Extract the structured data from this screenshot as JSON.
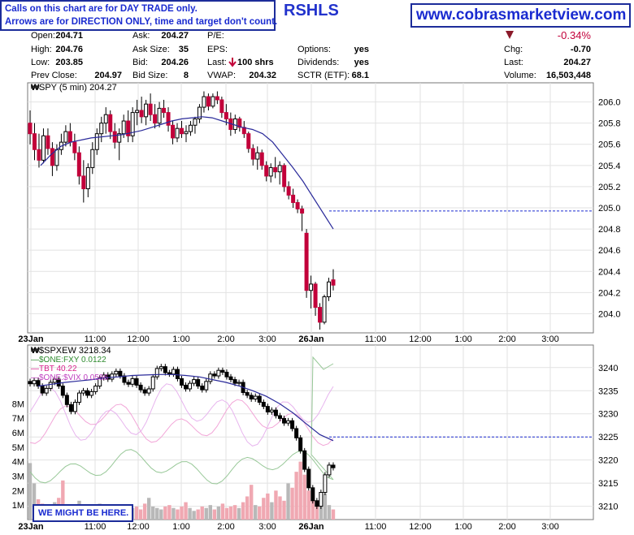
{
  "header": {
    "notice_line1": "Calls on this chart are for DAY TRADE only.",
    "notice_line2": "Arrows are for DIRECTION ONLY, time and target don't count.",
    "title": "RSHLS",
    "website": "www.cobrasmarketview.com"
  },
  "quote": {
    "open_label": "Open:",
    "open": "204.71",
    "high_label": "High:",
    "high": "204.76",
    "low_label": "Low:",
    "low": "203.85",
    "prev_close_label": "Prev Close:",
    "prev_close": "204.97",
    "ask_label": "Ask:",
    "ask": "204.27",
    "ask_size_label": "Ask Size:",
    "ask_size": "35",
    "bid_label": "Bid:",
    "bid": "204.26",
    "bid_size_label": "Bid Size:",
    "bid_size": "8",
    "pe_label": "P/E:",
    "eps_label": "EPS:",
    "last_label": "Last:",
    "last_trade": "100 shrs",
    "vwap_label": "VWAP:",
    "vwap": "204.32",
    "options_label": "Options:",
    "options": "yes",
    "dividends_label": "Dividends:",
    "dividends": "yes",
    "sctr_label": "SCTR (ETF):",
    "sctr": "68.1",
    "pct_change": "-0.34%",
    "chg_label": "Chg:",
    "chg": "-0.70",
    "last2_label": "Last:",
    "last": "204.27",
    "volume_label": "Volume:",
    "volume": "16,503,448",
    "colors": {
      "down": "#c2003a",
      "up": "#ffffff",
      "accent": "#1a2bd0"
    }
  },
  "chart_data": [
    {
      "type": "candlestick",
      "title": "SPY (5 min) 204.27",
      "x_ticks": [
        "23Jan",
        "11:00",
        "12:00",
        "1:00",
        "2:00",
        "3:00",
        "26Jan",
        "11:00",
        "12:00",
        "1:00",
        "2:00",
        "3:00"
      ],
      "y_ticks": [
        "206.0",
        "205.8",
        "205.6",
        "205.4",
        "205.2",
        "205.0",
        "204.8",
        "204.6",
        "204.4",
        "204.2",
        "204.0"
      ],
      "ylim": [
        203.85,
        206.15
      ],
      "reference_line": 204.97,
      "candles": [
        {
          "o": 205.8,
          "h": 205.92,
          "l": 205.6,
          "c": 205.7
        },
        {
          "o": 205.7,
          "h": 205.8,
          "l": 205.45,
          "c": 205.55
        },
        {
          "o": 205.55,
          "h": 205.7,
          "l": 205.38,
          "c": 205.45
        },
        {
          "o": 205.45,
          "h": 205.75,
          "l": 205.42,
          "c": 205.68
        },
        {
          "o": 205.68,
          "h": 205.75,
          "l": 205.5,
          "c": 205.56
        },
        {
          "o": 205.56,
          "h": 205.62,
          "l": 205.3,
          "c": 205.4
        },
        {
          "o": 205.4,
          "h": 205.6,
          "l": 205.35,
          "c": 205.55
        },
        {
          "o": 205.55,
          "h": 205.7,
          "l": 205.5,
          "c": 205.62
        },
        {
          "o": 205.62,
          "h": 205.78,
          "l": 205.58,
          "c": 205.72
        },
        {
          "o": 205.72,
          "h": 205.8,
          "l": 205.58,
          "c": 205.62
        },
        {
          "o": 205.62,
          "h": 205.7,
          "l": 205.45,
          "c": 205.52
        },
        {
          "o": 205.52,
          "h": 205.58,
          "l": 205.22,
          "c": 205.3
        },
        {
          "o": 205.3,
          "h": 205.45,
          "l": 205.05,
          "c": 205.18
        },
        {
          "o": 205.18,
          "h": 205.42,
          "l": 205.1,
          "c": 205.38
        },
        {
          "o": 205.38,
          "h": 205.62,
          "l": 205.32,
          "c": 205.55
        },
        {
          "o": 205.55,
          "h": 205.75,
          "l": 205.5,
          "c": 205.7
        },
        {
          "o": 205.7,
          "h": 205.86,
          "l": 205.62,
          "c": 205.8
        },
        {
          "o": 205.8,
          "h": 205.95,
          "l": 205.7,
          "c": 205.88
        },
        {
          "o": 205.88,
          "h": 205.92,
          "l": 205.65,
          "c": 205.72
        },
        {
          "o": 205.72,
          "h": 205.8,
          "l": 205.56,
          "c": 205.62
        },
        {
          "o": 205.62,
          "h": 205.75,
          "l": 205.45,
          "c": 205.7
        },
        {
          "o": 205.7,
          "h": 205.88,
          "l": 205.66,
          "c": 205.82
        },
        {
          "o": 205.82,
          "h": 205.92,
          "l": 205.62,
          "c": 205.68
        },
        {
          "o": 205.68,
          "h": 205.95,
          "l": 205.62,
          "c": 205.9
        },
        {
          "o": 205.9,
          "h": 206.02,
          "l": 205.78,
          "c": 205.92
        },
        {
          "o": 205.92,
          "h": 206.05,
          "l": 205.8,
          "c": 205.86
        },
        {
          "o": 205.86,
          "h": 206.02,
          "l": 205.78,
          "c": 205.98
        },
        {
          "o": 205.98,
          "h": 206.08,
          "l": 205.82,
          "c": 205.88
        },
        {
          "o": 205.88,
          "h": 205.98,
          "l": 205.75,
          "c": 205.8
        },
        {
          "o": 205.8,
          "h": 206.0,
          "l": 205.76,
          "c": 205.94
        },
        {
          "o": 205.94,
          "h": 206.02,
          "l": 205.85,
          "c": 205.9
        },
        {
          "o": 205.9,
          "h": 205.95,
          "l": 205.72,
          "c": 205.78
        },
        {
          "o": 205.78,
          "h": 205.82,
          "l": 205.6,
          "c": 205.66
        },
        {
          "o": 205.66,
          "h": 205.8,
          "l": 205.62,
          "c": 205.75
        },
        {
          "o": 205.75,
          "h": 205.82,
          "l": 205.66,
          "c": 205.7
        },
        {
          "o": 205.7,
          "h": 205.78,
          "l": 205.62,
          "c": 205.72
        },
        {
          "o": 205.72,
          "h": 205.82,
          "l": 205.68,
          "c": 205.78
        },
        {
          "o": 205.78,
          "h": 205.86,
          "l": 205.7,
          "c": 205.84
        },
        {
          "o": 205.84,
          "h": 205.98,
          "l": 205.8,
          "c": 205.95
        },
        {
          "o": 205.95,
          "h": 206.1,
          "l": 205.9,
          "c": 206.05
        },
        {
          "o": 206.05,
          "h": 206.08,
          "l": 205.92,
          "c": 205.96
        },
        {
          "o": 205.96,
          "h": 206.08,
          "l": 205.94,
          "c": 206.05
        },
        {
          "o": 206.05,
          "h": 206.1,
          "l": 205.98,
          "c": 206.02
        },
        {
          "o": 206.02,
          "h": 206.05,
          "l": 205.85,
          "c": 205.9
        },
        {
          "o": 205.9,
          "h": 205.98,
          "l": 205.78,
          "c": 205.84
        },
        {
          "o": 205.84,
          "h": 205.9,
          "l": 205.68,
          "c": 205.74
        },
        {
          "o": 205.74,
          "h": 205.88,
          "l": 205.7,
          "c": 205.84
        },
        {
          "o": 205.84,
          "h": 205.86,
          "l": 205.72,
          "c": 205.76
        },
        {
          "o": 205.76,
          "h": 205.82,
          "l": 205.66,
          "c": 205.7
        },
        {
          "o": 205.7,
          "h": 205.72,
          "l": 205.52,
          "c": 205.56
        },
        {
          "o": 205.56,
          "h": 205.6,
          "l": 205.4,
          "c": 205.46
        },
        {
          "o": 205.46,
          "h": 205.58,
          "l": 205.36,
          "c": 205.52
        },
        {
          "o": 205.52,
          "h": 205.55,
          "l": 205.36,
          "c": 205.4
        },
        {
          "o": 205.4,
          "h": 205.44,
          "l": 205.25,
          "c": 205.3
        },
        {
          "o": 205.3,
          "h": 205.42,
          "l": 205.24,
          "c": 205.38
        },
        {
          "o": 205.38,
          "h": 205.48,
          "l": 205.28,
          "c": 205.34
        },
        {
          "o": 205.34,
          "h": 205.44,
          "l": 205.22,
          "c": 205.4
        },
        {
          "o": 205.4,
          "h": 205.42,
          "l": 205.15,
          "c": 205.2
        },
        {
          "o": 205.2,
          "h": 205.25,
          "l": 205.08,
          "c": 205.12
        },
        {
          "o": 205.12,
          "h": 205.18,
          "l": 205.0,
          "c": 205.05
        },
        {
          "o": 205.05,
          "h": 205.08,
          "l": 204.95,
          "c": 204.99
        },
        {
          "o": 204.99,
          "h": 205.02,
          "l": 204.78,
          "c": 204.95
        },
        {
          "o": 204.76,
          "h": 204.8,
          "l": 204.15,
          "c": 204.22
        },
        {
          "o": 204.22,
          "h": 204.36,
          "l": 204.05,
          "c": 204.28
        },
        {
          "o": 204.28,
          "h": 204.3,
          "l": 203.98,
          "c": 204.06
        },
        {
          "o": 204.06,
          "h": 204.1,
          "l": 203.85,
          "c": 203.92
        },
        {
          "o": 203.92,
          "h": 204.18,
          "l": 203.9,
          "c": 204.16
        },
        {
          "o": 204.16,
          "h": 204.34,
          "l": 204.12,
          "c": 204.3
        },
        {
          "o": 204.32,
          "h": 204.42,
          "l": 204.22,
          "c": 204.27
        }
      ],
      "ma": [
        205.4,
        205.5,
        205.58,
        205.62,
        205.64,
        205.66,
        205.67,
        205.68,
        205.69,
        205.71,
        205.73,
        205.76,
        205.79,
        205.82,
        205.84,
        205.85,
        205.86,
        205.85,
        205.82,
        205.79,
        205.76,
        205.74,
        205.7,
        205.62,
        205.5,
        205.38,
        205.25,
        205.1,
        204.95,
        204.8
      ]
    },
    {
      "type": "candlestick",
      "title": "$SPXEW 3218.34",
      "legend": [
        {
          "name": "$ONE:FXY 0.0122",
          "color": "#2e8b2e"
        },
        {
          "name": "TBT 40.22",
          "color": "#d8208c"
        },
        {
          "name": "$ONE:$VIX 0.0586",
          "color": "#c040c0"
        }
      ],
      "x_ticks": [
        "23Jan",
        "11:00",
        "12:00",
        "1:00",
        "2:00",
        "3:00",
        "26Jan",
        "11:00",
        "12:00",
        "1:00",
        "2:00",
        "3:00"
      ],
      "y_ticks": [
        "3240",
        "3235",
        "3230",
        "3225",
        "3220",
        "3215",
        "3210"
      ],
      "volume_ticks": [
        "8M",
        "7M",
        "6M",
        "5M",
        "4M",
        "3M",
        "2M",
        "1M"
      ],
      "ylim": [
        3208,
        3244
      ],
      "reference_line": 3225,
      "closes": [
        3236.5,
        3237.2,
        3236.0,
        3234.5,
        3235.5,
        3236.8,
        3237.5,
        3236.0,
        3234.0,
        3232.0,
        3230.5,
        3232.5,
        3234.5,
        3235.0,
        3234.0,
        3234.8,
        3236.0,
        3237.8,
        3238.4,
        3237.5,
        3238.6,
        3239.2,
        3238.2,
        3236.8,
        3236.4,
        3237.6,
        3236.2,
        3235.2,
        3234.5,
        3235.4,
        3238.0,
        3239.8,
        3240.2,
        3238.9,
        3238.6,
        3239.6,
        3237.6,
        3236.2,
        3235.4,
        3236.6,
        3237.4,
        3236.0,
        3235.2,
        3237.0,
        3238.6,
        3238.2,
        3239.4,
        3239.0,
        3238.0,
        3237.4,
        3236.6,
        3236.8,
        3234.6,
        3234.0,
        3233.2,
        3233.8,
        3232.5,
        3231.6,
        3230.4,
        3230.8,
        3229.6,
        3229.0,
        3228.0,
        3228.5,
        3226.8,
        3224.8,
        3222.0,
        3218.0,
        3214.0,
        3211.2,
        3210.0,
        3213.0,
        3216.8,
        3218.9,
        3218.34
      ],
      "ma": [
        3236.0,
        3236.4,
        3236.8,
        3237.1,
        3237.4,
        3237.8,
        3238.0,
        3238.3,
        3238.4,
        3238.5,
        3238.5,
        3238.3,
        3238.0,
        3237.4,
        3236.8,
        3236.0,
        3235.0,
        3233.8,
        3232.2,
        3230.2,
        3227.8,
        3225.5,
        3224.2
      ],
      "volumes": [
        3.9,
        2.5,
        1.4,
        1.1,
        1.0,
        0.9,
        1.2,
        1.5,
        2.7,
        1.0,
        0.7,
        0.9,
        1.3,
        1.0,
        0.7,
        0.6,
        0.9,
        1.1,
        0.8,
        0.7,
        0.9,
        0.8,
        1.0,
        0.7,
        0.6,
        0.8,
        0.9,
        0.7,
        1.1,
        1.5,
        0.9,
        0.8,
        0.7,
        0.9,
        1.0,
        0.8,
        0.7,
        0.9,
        1.2,
        0.8,
        0.6,
        0.7,
        0.9,
        0.8,
        1.0,
        0.7,
        0.9,
        1.1,
        0.8,
        0.9,
        1.0,
        0.8,
        1.2,
        1.6,
        2.4,
        1.0,
        0.9,
        1.5,
        1.8,
        1.2,
        2.0,
        1.6,
        1.3,
        2.5,
        2.2,
        3.3,
        4.0,
        3.1,
        2.0,
        1.6,
        1.2,
        1.4,
        1.8,
        1.0,
        0.7
      ]
    }
  ],
  "callout": "WE MIGHT BE HERE."
}
